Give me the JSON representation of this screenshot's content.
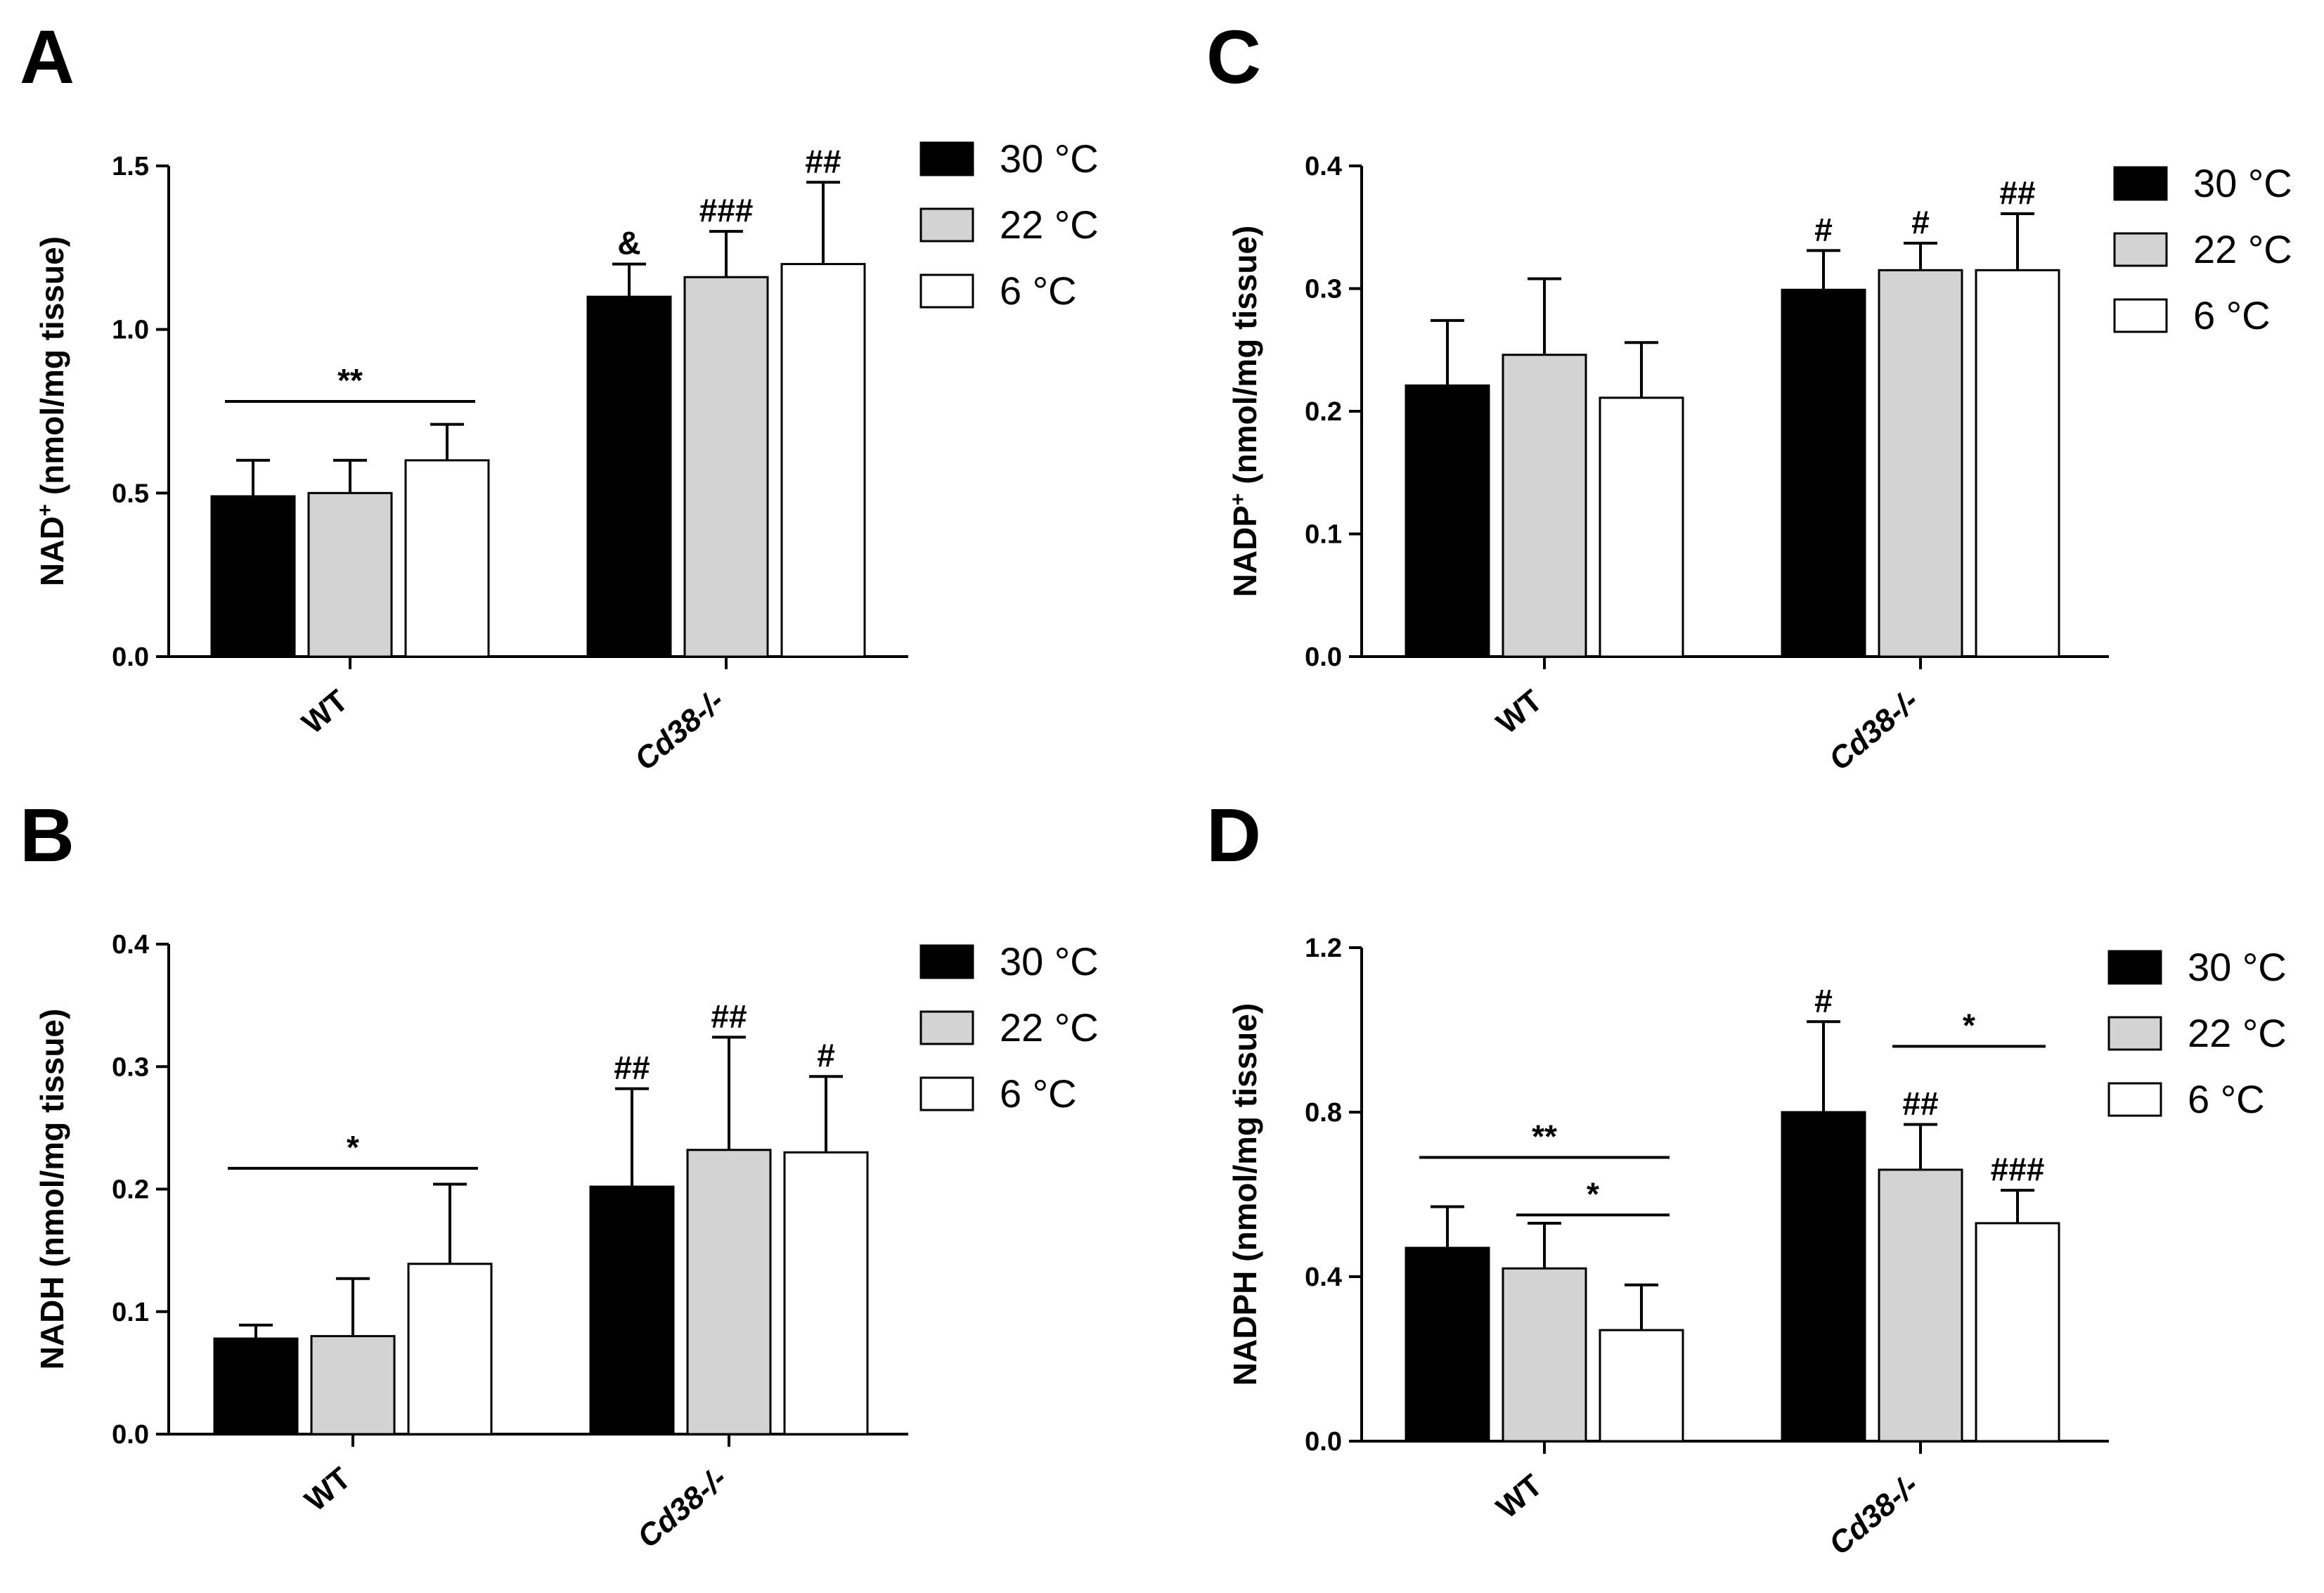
{
  "figure": {
    "series_names": [
      "30 °C",
      "22 °C",
      "6 °C"
    ],
    "series_colors": [
      "#000000",
      "#d3d3d3",
      "#ffffff"
    ],
    "x_tick_labels": [
      "WT",
      "Cd38-/-"
    ]
  },
  "chart_data": [
    {
      "panel": "A",
      "type": "bar",
      "ylabel": "NAD⁺ (nmol/mg tissue)",
      "ylabel_parts": [
        "NAD",
        "+",
        " (nmol/mg tissue)"
      ],
      "ylim": [
        0,
        1.5
      ],
      "yticks": [
        "0.0",
        "0.5",
        "1.0",
        "1.5"
      ],
      "categories": [
        "WT",
        "Cd38-/-"
      ],
      "series": [
        {
          "name": "30 °C",
          "values": [
            0.49,
            1.1
          ],
          "errors": [
            0.11,
            0.1
          ]
        },
        {
          "name": "22 °C",
          "values": [
            0.5,
            1.16
          ],
          "errors": [
            0.1,
            0.14
          ]
        },
        {
          "name": "6 °C",
          "values": [
            0.6,
            1.2
          ],
          "errors": [
            0.11,
            0.25
          ]
        }
      ],
      "bar_annotations": [
        {
          "category": 1,
          "series": 0,
          "text": "&"
        },
        {
          "category": 1,
          "series": 1,
          "text": "###"
        },
        {
          "category": 1,
          "series": 2,
          "text": "##"
        }
      ],
      "brackets": [
        {
          "category": 0,
          "from": 0,
          "to": 2,
          "level": 0.78,
          "text": "**"
        }
      ]
    },
    {
      "panel": "B",
      "type": "bar",
      "ylabel": "NADH (nmol/mg tissue)",
      "ylabel_parts": [
        "NADH (nmol/mg tissue)",
        "",
        ""
      ],
      "ylim": [
        0,
        0.4
      ],
      "yticks": [
        "0.0",
        "0.1",
        "0.2",
        "0.3",
        "0.4"
      ],
      "categories": [
        "WT",
        "Cd38-/-"
      ],
      "series": [
        {
          "name": "30 °C",
          "values": [
            0.078,
            0.202
          ],
          "errors": [
            0.011,
            0.08
          ]
        },
        {
          "name": "22 °C",
          "values": [
            0.08,
            0.232
          ],
          "errors": [
            0.047,
            0.092
          ]
        },
        {
          "name": "6 °C",
          "values": [
            0.139,
            0.23
          ],
          "errors": [
            0.065,
            0.062
          ]
        }
      ],
      "bar_annotations": [
        {
          "category": 1,
          "series": 0,
          "text": "##"
        },
        {
          "category": 1,
          "series": 1,
          "text": "##"
        },
        {
          "category": 1,
          "series": 2,
          "text": "#"
        }
      ],
      "brackets": [
        {
          "category": 0,
          "from": 0,
          "to": 2,
          "level": 0.217,
          "text": "*"
        }
      ]
    },
    {
      "panel": "C",
      "type": "bar",
      "ylabel": "NADP⁺ (nmol/mg tissue)",
      "ylabel_parts": [
        "NADP",
        "+",
        " (nmol/mg tissue)"
      ],
      "ylim": [
        0,
        0.4
      ],
      "yticks": [
        "0.0",
        "0.1",
        "0.2",
        "0.3",
        "0.4"
      ],
      "categories": [
        "WT",
        "Cd38-/-"
      ],
      "series": [
        {
          "name": "30 °C",
          "values": [
            0.221,
            0.299
          ],
          "errors": [
            0.053,
            0.032
          ]
        },
        {
          "name": "22 °C",
          "values": [
            0.246,
            0.315
          ],
          "errors": [
            0.062,
            0.022
          ]
        },
        {
          "name": "6 °C",
          "values": [
            0.211,
            0.315
          ],
          "errors": [
            0.045,
            0.046
          ]
        }
      ],
      "bar_annotations": [
        {
          "category": 1,
          "series": 0,
          "text": "#"
        },
        {
          "category": 1,
          "series": 1,
          "text": "#"
        },
        {
          "category": 1,
          "series": 2,
          "text": "##"
        }
      ],
      "brackets": []
    },
    {
      "panel": "D",
      "type": "bar",
      "ylabel": "NADPH (nmol/mg tissue)",
      "ylabel_parts": [
        "NADPH (nmol/mg tissue)",
        "",
        ""
      ],
      "ylim": [
        0,
        1.2
      ],
      "yticks": [
        "0.0",
        "0.4",
        "0.8",
        "1.2"
      ],
      "categories": [
        "WT",
        "Cd38-/-"
      ],
      "series": [
        {
          "name": "30 °C",
          "values": [
            0.47,
            0.8
          ],
          "errors": [
            0.1,
            0.22
          ]
        },
        {
          "name": "22 °C",
          "values": [
            0.42,
            0.66
          ],
          "errors": [
            0.11,
            0.11
          ]
        },
        {
          "name": "6 °C",
          "values": [
            0.27,
            0.53
          ],
          "errors": [
            0.11,
            0.08
          ]
        }
      ],
      "bar_annotations": [
        {
          "category": 1,
          "series": 0,
          "text": "#"
        },
        {
          "category": 1,
          "series": 1,
          "text": "##"
        },
        {
          "category": 1,
          "series": 2,
          "text": "###"
        }
      ],
      "brackets": [
        {
          "category": 0,
          "from": 0,
          "to": 2,
          "level": 0.69,
          "text": "**"
        },
        {
          "category": 0,
          "from": 1,
          "to": 2,
          "level": 0.55,
          "text": "*"
        },
        {
          "category": 1,
          "from": 1,
          "to": 2,
          "level": 0.96,
          "text": "*"
        }
      ]
    }
  ]
}
